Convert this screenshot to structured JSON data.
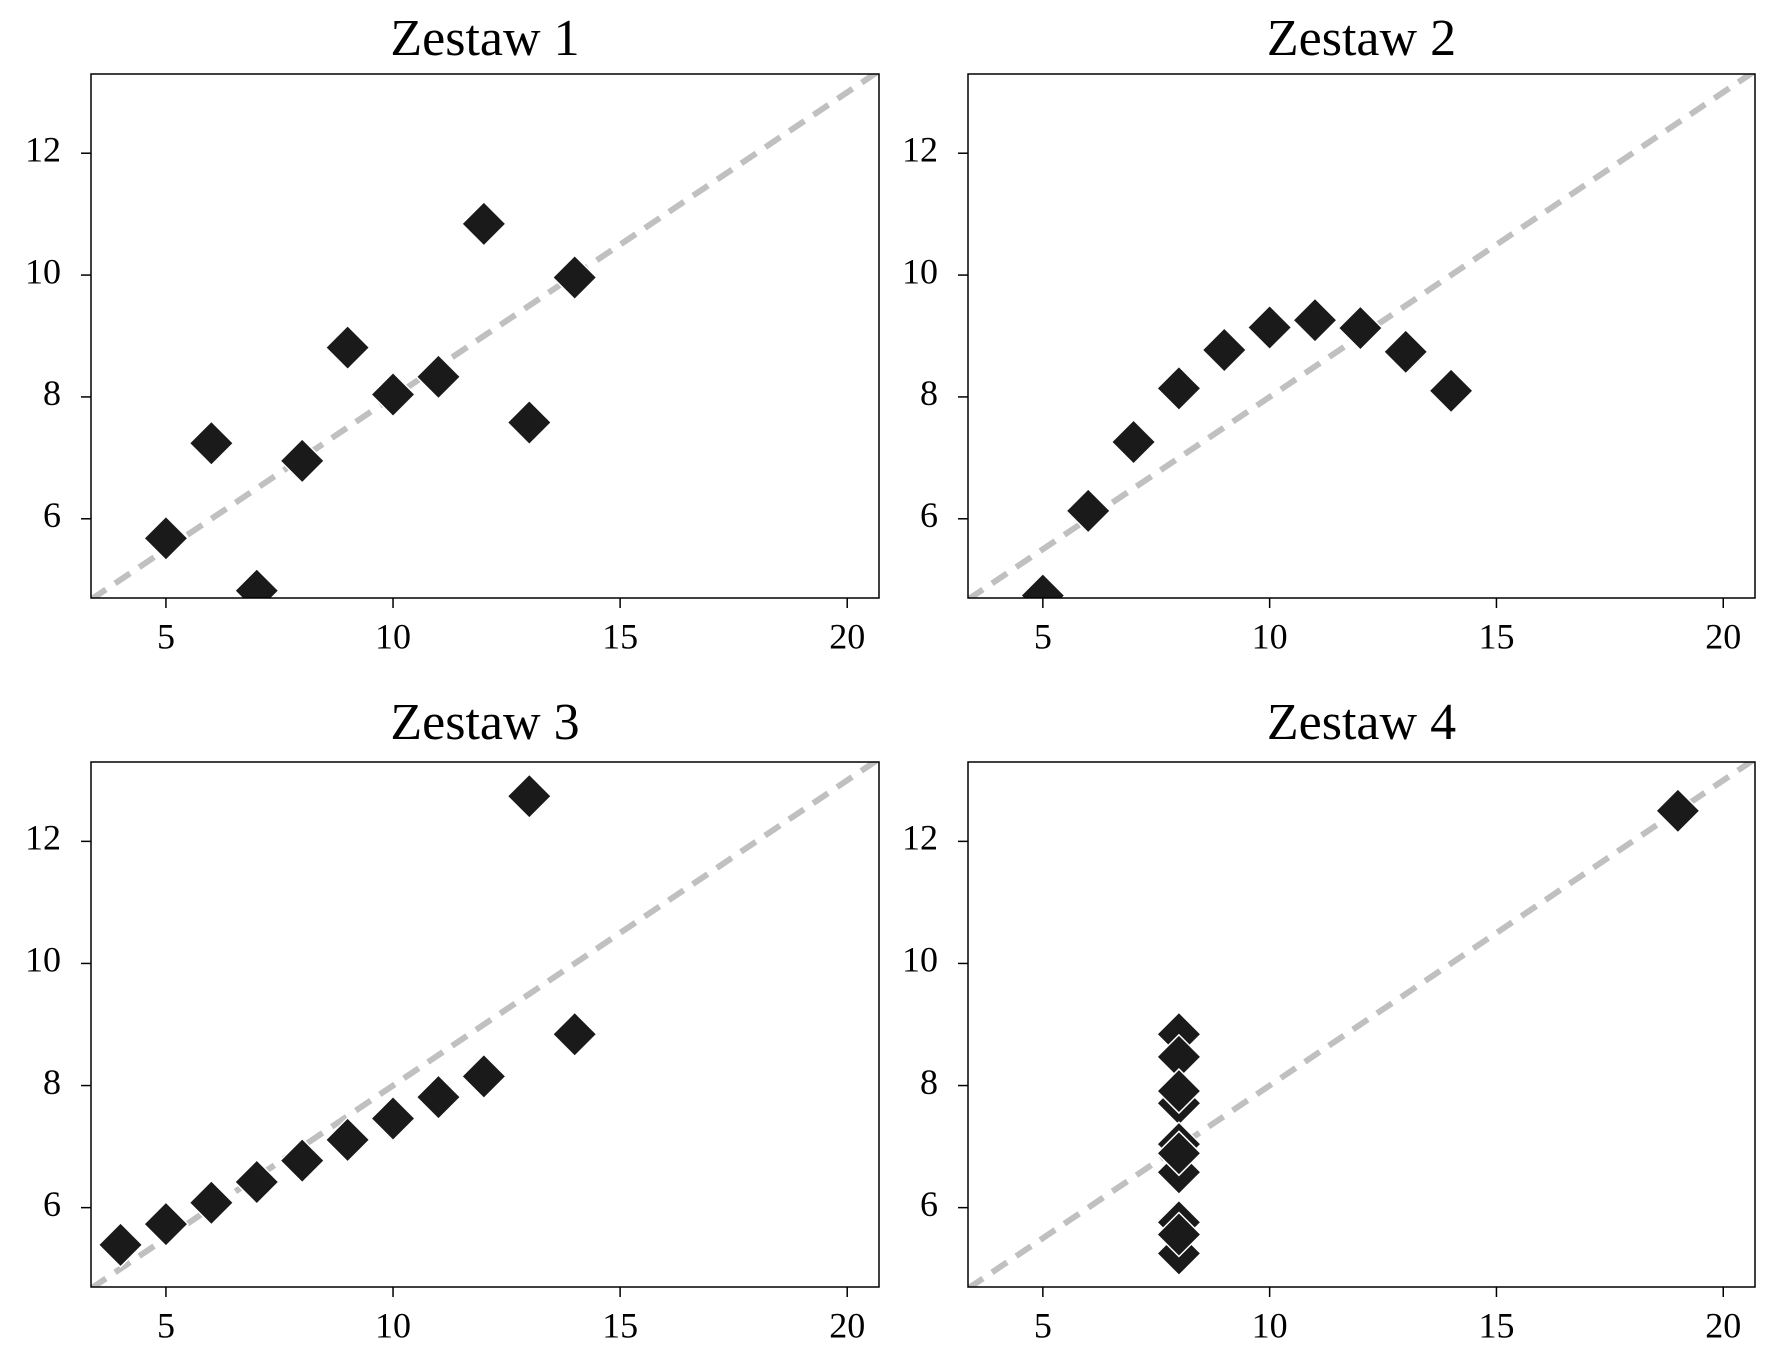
{
  "chart_data": [
    {
      "type": "scatter",
      "title": "Zestaw 1",
      "x": [
        10,
        8,
        13,
        9,
        11,
        14,
        6,
        12,
        7,
        5
      ],
      "y": [
        8.04,
        6.95,
        7.58,
        8.81,
        8.33,
        9.96,
        7.24,
        10.84,
        4.82,
        5.68
      ],
      "color": "#1a1a1a",
      "xlim": [
        3.35,
        20.7
      ],
      "ylim": [
        4.7,
        13.3
      ],
      "xticks": [
        5,
        10,
        15,
        20
      ],
      "yticks": [
        6,
        8,
        10,
        12
      ],
      "fit": {
        "intercept": 3,
        "slope": 0.5,
        "color": "#c0c0c0"
      }
    },
    {
      "type": "scatter",
      "title": "Zestaw 2",
      "x": [
        10,
        8,
        13,
        9,
        11,
        14,
        6,
        12,
        7,
        5
      ],
      "y": [
        9.14,
        8.14,
        8.74,
        8.77,
        9.26,
        8.1,
        6.13,
        9.13,
        7.26,
        4.74
      ],
      "color": "#1a1a1a",
      "xlim": [
        3.35,
        20.7
      ],
      "ylim": [
        4.7,
        13.3
      ],
      "xticks": [
        5,
        10,
        15,
        20
      ],
      "yticks": [
        6,
        8,
        10,
        12
      ],
      "fit": {
        "intercept": 3,
        "slope": 0.5,
        "color": "#c0c0c0"
      }
    },
    {
      "type": "scatter",
      "title": "Zestaw 3",
      "x": [
        10,
        8,
        13,
        9,
        11,
        14,
        6,
        4,
        12,
        7,
        5
      ],
      "y": [
        7.46,
        6.77,
        12.74,
        7.11,
        7.81,
        8.84,
        6.08,
        5.39,
        8.15,
        6.42,
        5.73
      ],
      "color": "#1a1a1a",
      "xlim": [
        3.35,
        20.7
      ],
      "ylim": [
        4.7,
        13.3
      ],
      "xticks": [
        5,
        10,
        15,
        20
      ],
      "yticks": [
        6,
        8,
        10,
        12
      ],
      "fit": {
        "intercept": 3,
        "slope": 0.5,
        "color": "#c0c0c0"
      }
    },
    {
      "type": "scatter",
      "title": "Zestaw 4",
      "x": [
        8,
        8,
        8,
        8,
        8,
        8,
        8,
        19,
        8,
        8,
        8
      ],
      "y": [
        6.58,
        5.76,
        7.71,
        8.84,
        8.47,
        7.04,
        5.25,
        12.5,
        5.56,
        7.91,
        6.89
      ],
      "color": "#1a1a1a",
      "xlim": [
        3.35,
        20.7
      ],
      "ylim": [
        4.7,
        13.3
      ],
      "xticks": [
        5,
        10,
        15,
        20
      ],
      "yticks": [
        6,
        8,
        10,
        12
      ],
      "fit": {
        "intercept": 3,
        "slope": 0.5,
        "color": "#c0c0c0"
      }
    }
  ]
}
